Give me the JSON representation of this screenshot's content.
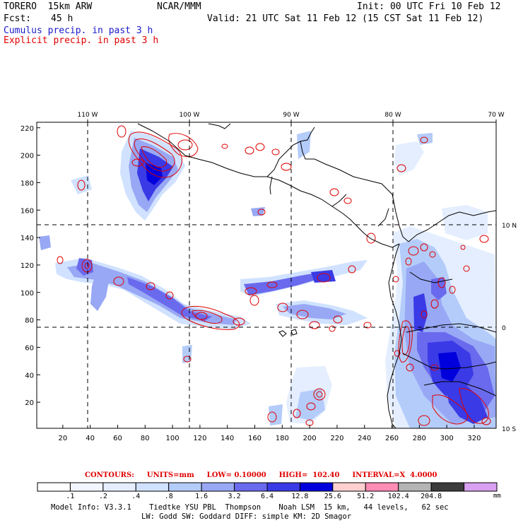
{
  "header": {
    "model_name": "TORERO  15km ARW",
    "center": "NCAR/MMM",
    "init": "Init: 00 UTC Fri 10 Feb 12",
    "fcst_label": "Fcst:",
    "fcst_value": "45 h",
    "valid": "Valid: 21 UTC Sat 11 Feb 12 (15 CST Sat 11 Feb 12)",
    "field1": "Cumulus precip. in past 3 h",
    "field2": "Explicit precip. in past 3 h"
  },
  "map": {
    "lon_labels": [
      "110 W",
      "100 W",
      "90 W",
      "80 W",
      "70 W"
    ],
    "lat_labels": [
      "10 N",
      "0",
      "10 S"
    ],
    "x_ticks": [
      "20",
      "40",
      "60",
      "80",
      "100",
      "120",
      "140",
      "160",
      "180",
      "200",
      "220",
      "240",
      "260",
      "280",
      "300",
      "320"
    ],
    "y_ticks": [
      "20",
      "40",
      "60",
      "80",
      "100",
      "120",
      "140",
      "160",
      "180",
      "200",
      "220"
    ],
    "colors": {
      "coast": "#000000",
      "grid": "#000000",
      "contour": "#e00000"
    }
  },
  "contour_info": {
    "contours": "CONTOURS:",
    "units": "UNITS=mm",
    "low": "LOW= 0.10000",
    "high": "HIGH=  102.40",
    "interval": "INTERVAL=X  4.0000"
  },
  "colorbar": {
    "labels": [
      ".1",
      ".2",
      ".4",
      ".8",
      "1.6",
      "3.2",
      "6.4",
      "12.8",
      "25.6",
      "51.2",
      "102.4",
      "204.8"
    ],
    "unit": "mm",
    "colors": [
      "#ffffff",
      "#f2f6ff",
      "#e4eeff",
      "#d0e2ff",
      "#b4ccfa",
      "#98a8f5",
      "#6a6aee",
      "#3a3ae6",
      "#0000dc",
      "#ffd0d0",
      "#ff8cb4",
      "#b4b4b4",
      "#3c3c3c",
      "#d8a0f0"
    ]
  },
  "footer": {
    "line1": "Model Info: V3.3.1    Tiedtke YSU PBL  Thompson    Noah LSM  15 km,   44 levels,   62 sec",
    "line2": "LW: Godd SW: Goddard DIFF: simple KM: 2D Smagor"
  }
}
